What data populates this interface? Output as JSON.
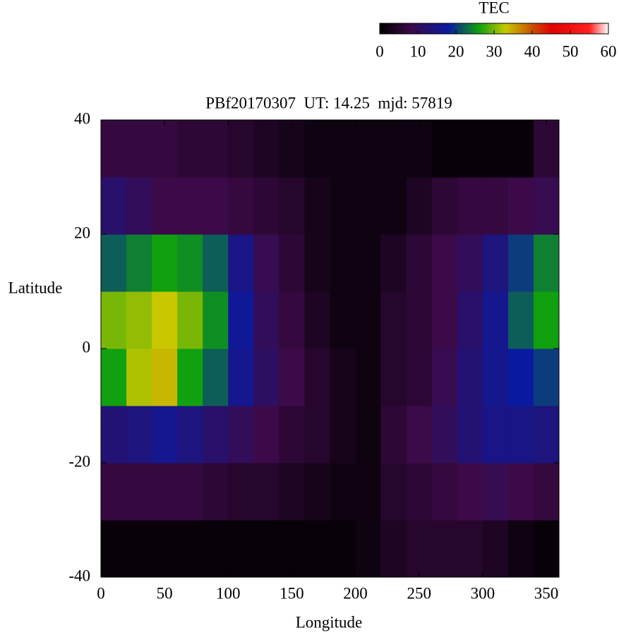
{
  "chart_data": {
    "type": "heatmap",
    "title": "PBf20170307  UT: 14.25  mjd: 57819",
    "x_label": "Longitude",
    "y_label": "Latitude",
    "x": [
      10,
      30,
      50,
      70,
      90,
      110,
      130,
      150,
      170,
      190,
      210,
      230,
      250,
      270,
      290,
      310,
      330,
      350
    ],
    "y": [
      -35,
      -25,
      -15,
      -5,
      5,
      15,
      25,
      35
    ],
    "z": [
      [
        1,
        1,
        1,
        1,
        1,
        1,
        1,
        1,
        1,
        1,
        2,
        4,
        5,
        5,
        5,
        4,
        2,
        1
      ],
      [
        7,
        7,
        7,
        7,
        6,
        5,
        5,
        4,
        3,
        2,
        2,
        5,
        6,
        7,
        8,
        9,
        8,
        7
      ],
      [
        13,
        14,
        16,
        14,
        12,
        10,
        8,
        6,
        5,
        3,
        2,
        6,
        8,
        10,
        13,
        15,
        15,
        14
      ],
      [
        26,
        32,
        34,
        26,
        22,
        16,
        11,
        8,
        5,
        3,
        2,
        5,
        6,
        9,
        13,
        16,
        18,
        20
      ],
      [
        30,
        31,
        33,
        30,
        25,
        17,
        10,
        7,
        4,
        2,
        2,
        5,
        6,
        8,
        12,
        16,
        22,
        26
      ],
      [
        22,
        24,
        26,
        25,
        22,
        15,
        9,
        6,
        3,
        2,
        2,
        4,
        6,
        8,
        10,
        14,
        20,
        24
      ],
      [
        12,
        10,
        8,
        8,
        8,
        7,
        6,
        5,
        3,
        2,
        2,
        2,
        4,
        6,
        7,
        7,
        8,
        9
      ],
      [
        7,
        7,
        7,
        6,
        6,
        5,
        4,
        3,
        2,
        2,
        2,
        2,
        2,
        1,
        1,
        1,
        1,
        6
      ]
    ],
    "xlim": [
      0,
      360
    ],
    "xticks": [
      0,
      50,
      100,
      150,
      200,
      250,
      300,
      350
    ],
    "ylim": [
      -40,
      40
    ],
    "yticks": [
      -40,
      -20,
      0,
      20,
      40
    ],
    "colorbar": {
      "label": "TEC",
      "clim": [
        0,
        60
      ],
      "ticks": [
        0,
        10,
        20,
        30,
        40,
        50,
        60
      ],
      "colormap": [
        {
          "value": 0,
          "color": "#000000"
        },
        {
          "value": 8,
          "color": "#3c0a48"
        },
        {
          "value": 18,
          "color": "#0a1aa0"
        },
        {
          "value": 26,
          "color": "#10a010"
        },
        {
          "value": 33,
          "color": "#c8c800"
        },
        {
          "value": 40,
          "color": "#c85000"
        },
        {
          "value": 45,
          "color": "#e00000"
        },
        {
          "value": 55,
          "color": "#ff2020"
        },
        {
          "value": 60,
          "color": "#ffffff"
        }
      ]
    }
  }
}
